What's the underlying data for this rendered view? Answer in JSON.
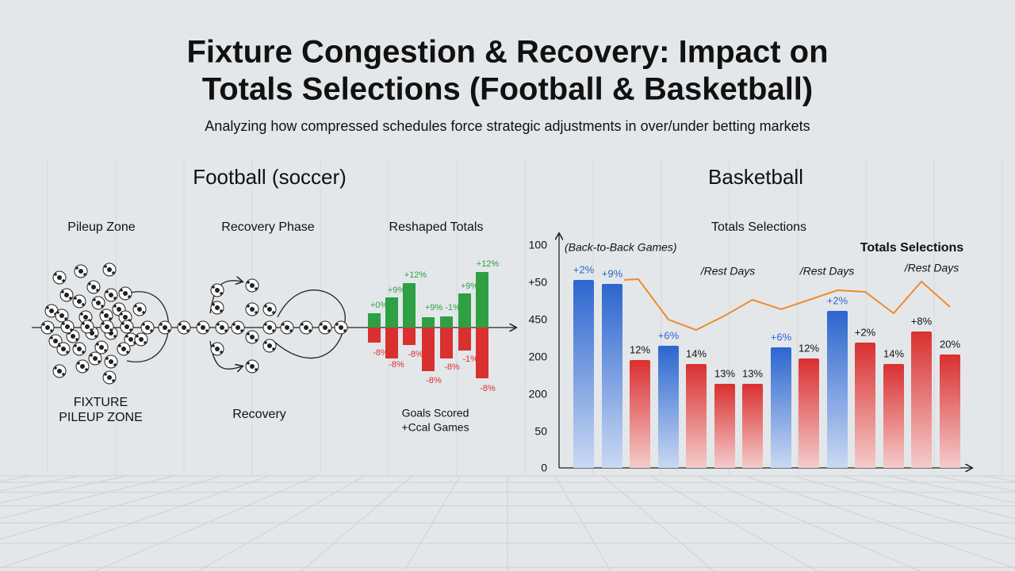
{
  "header": {
    "title_lines": [
      "Fixture Congestion & Recovery: Impact on",
      "Totals Selections (Football & Basketball)"
    ],
    "subtitle": "Analyzing how compressed schedules force strategic adjustments in over/under betting markets"
  },
  "football": {
    "title": "Football (soccer)",
    "panels": [
      "Pileup Zone",
      "Recovery Phase",
      "Reshaped Totals"
    ],
    "captions": {
      "pileup": [
        "FIXTURE",
        "PILEUP ZONE"
      ],
      "recovery": "Recovery",
      "totals": [
        "Goals Scored",
        "+Ccal Games"
      ]
    },
    "gain_labels": [
      "+0%",
      "+9%",
      "+12%",
      "+9%",
      "-1%",
      "+9%",
      "+12%"
    ],
    "loss_labels": [
      "-8%",
      "-8%",
      "-8%",
      "-8%",
      "-8%",
      "-1%",
      "-8%"
    ],
    "gain_color": "#2ea043",
    "loss_color": "#d93030"
  },
  "basketball": {
    "title": "Basketball",
    "chart_title": "Totals Selections",
    "annotations": [
      "(Back-to-Back Games)",
      "/Rest Days",
      "/Rest Days",
      "Totals Selections",
      "/Rest Days"
    ],
    "axis_labels": [
      "100",
      "+50",
      "450",
      "200",
      "200",
      "50",
      "0"
    ],
    "line_color": "#ee8a30",
    "bars": [
      {
        "label": "+2%",
        "color": "#2c66cf"
      },
      {
        "label": "+9%",
        "color": "#2c66cf"
      },
      {
        "label": "12%",
        "color": "#d93030"
      },
      {
        "label": "+6%",
        "color": "#2c66cf"
      },
      {
        "label": "14%",
        "color": "#d93030"
      },
      {
        "label": "13%",
        "color": "#d93030"
      },
      {
        "label": "13%",
        "color": "#d93030"
      },
      {
        "label": "+6%",
        "color": "#2c66cf"
      },
      {
        "label": "12%",
        "color": "#d93030"
      },
      {
        "label": "+2%",
        "color": "#2c66cf"
      },
      {
        "label": "+2%",
        "color": "#d93030"
      },
      {
        "label": "14%",
        "color": "#d93030"
      },
      {
        "label": "+8%",
        "color": "#d93030"
      },
      {
        "label": "20%",
        "color": "#d93030"
      }
    ]
  }
}
